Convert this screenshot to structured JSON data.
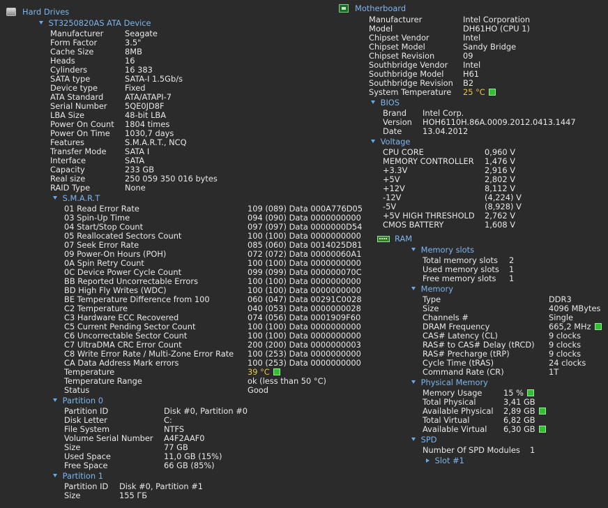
{
  "hard_drives": {
    "title": "Hard Drives",
    "device": "ST3250820AS ATA Device",
    "props": [
      {
        "k": "Manufacturer",
        "v": "Seagate"
      },
      {
        "k": "Form Factor",
        "v": "3.5\""
      },
      {
        "k": "Cache Size",
        "v": "8MB"
      },
      {
        "k": "Heads",
        "v": "16"
      },
      {
        "k": "Cylinders",
        "v": "16 383"
      },
      {
        "k": "SATA type",
        "v": "SATA-I 1.5Gb/s"
      },
      {
        "k": "Device type",
        "v": "Fixed"
      },
      {
        "k": "ATA Standard",
        "v": "ATA/ATAPI-7"
      },
      {
        "k": "Serial Number",
        "v": "5QE0JD8F"
      },
      {
        "k": "LBA Size",
        "v": "48-bit LBA"
      },
      {
        "k": "Power On Count",
        "v": "1804 times"
      },
      {
        "k": "Power On Time",
        "v": "1030,7 days"
      },
      {
        "k": "Features",
        "v": "S.M.A.R.T., NCQ"
      },
      {
        "k": "Transfer Mode",
        "v": "SATA I"
      },
      {
        "k": "Interface",
        "v": "SATA"
      },
      {
        "k": "Capacity",
        "v": "233 GB"
      },
      {
        "k": "Real size",
        "v": "250 059 350 016 bytes"
      },
      {
        "k": "RAID Type",
        "v": "None"
      }
    ],
    "smart": {
      "title": "S.M.A.R.T",
      "rows": [
        {
          "k": "01 Read Error Rate",
          "v": "109 (089) Data 000A776D05"
        },
        {
          "k": "03 Spin-Up Time",
          "v": "094 (090) Data 0000000000"
        },
        {
          "k": "04 Start/Stop Count",
          "v": "097 (097) Data 0000000D54"
        },
        {
          "k": "05 Reallocated Sectors Count",
          "v": "100 (100) Data 0000000000"
        },
        {
          "k": "07 Seek Error Rate",
          "v": "085 (060) Data 0014025D81"
        },
        {
          "k": "09 Power-On Hours (POH)",
          "v": "072 (072) Data 00000060A1"
        },
        {
          "k": "0A Spin Retry Count",
          "v": "100 (100) Data 0000000000"
        },
        {
          "k": "0C Device Power Cycle Count",
          "v": "099 (099) Data 000000070C"
        },
        {
          "k": "BB Reported Uncorrectable Errors",
          "v": "100 (100) Data 0000000000"
        },
        {
          "k": "BD High Fly Writes (WDC)",
          "v": "100 (100) Data 0000000000"
        },
        {
          "k": "BE Temperature Difference from 100",
          "v": "060 (047) Data 00291C0028"
        },
        {
          "k": "C2 Temperature",
          "v": "040 (053) Data 0000000028"
        },
        {
          "k": "C3 Hardware ECC Recovered",
          "v": "074 (056) Data 0001909F60"
        },
        {
          "k": "C5 Current Pending Sector Count",
          "v": "100 (100) Data 0000000000"
        },
        {
          "k": "C6 Uncorrectable Sector Count",
          "v": "100 (100) Data 0000000000"
        },
        {
          "k": "C7 UltraDMA CRC Error Count",
          "v": "200 (200) Data 0000000003"
        },
        {
          "k": "C8 Write Error Rate / Multi-Zone Error Rate",
          "v": "100 (253) Data 0000000000"
        },
        {
          "k": "CA Data Address Mark errors",
          "v": "100 (253) Data 0000000000"
        }
      ],
      "temperature_label": "Temperature",
      "temperature_value": "39 °C",
      "temp_range_label": "Temperature Range",
      "temp_range_value": "ok (less than 50 °C)",
      "status_label": "Status",
      "status_value": "Good"
    },
    "partition0": {
      "title": "Partition 0",
      "props": [
        {
          "k": "Partition ID",
          "v": "Disk #0, Partition #0"
        },
        {
          "k": "Disk Letter",
          "v": "C:"
        },
        {
          "k": "File System",
          "v": "NTFS"
        },
        {
          "k": "Volume Serial Number",
          "v": "A4F2AAF0"
        },
        {
          "k": "Size",
          "v": "77 GB"
        },
        {
          "k": "Used Space",
          "v": "11,0 GB (15%)"
        },
        {
          "k": "Free Space",
          "v": "66 GB (85%)"
        }
      ]
    },
    "partition1": {
      "title": "Partition 1",
      "props": [
        {
          "k": "Partition ID",
          "v": "Disk #0, Partition #1"
        },
        {
          "k": "Size",
          "v": "155 ГБ"
        }
      ]
    }
  },
  "motherboard": {
    "title": "Motherboard",
    "props": [
      {
        "k": "Manufacturer",
        "v": "Intel Corporation"
      },
      {
        "k": "Model",
        "v": "DH61HO (CPU 1)"
      },
      {
        "k": "Chipset Vendor",
        "v": "Intel"
      },
      {
        "k": "Chipset Model",
        "v": "Sandy Bridge"
      },
      {
        "k": "Chipset Revision",
        "v": "09"
      },
      {
        "k": "Southbridge Vendor",
        "v": "Intel"
      },
      {
        "k": "Southbridge Model",
        "v": "H61"
      },
      {
        "k": "Southbridge Revision",
        "v": "B2"
      }
    ],
    "sys_temp_label": "System Temperature",
    "sys_temp_value": "25 °C",
    "bios": {
      "title": "BIOS",
      "props": [
        {
          "k": "Brand",
          "v": "Intel Corp."
        },
        {
          "k": "Version",
          "v": "HOH6110H.86A.0009.2012.0413.1447"
        },
        {
          "k": "Date",
          "v": "13.04.2012"
        }
      ]
    },
    "voltage": {
      "title": "Voltage",
      "props": [
        {
          "k": "CPU CORE",
          "v": "0,960 V"
        },
        {
          "k": "MEMORY CONTROLLER",
          "v": "1,476 V"
        },
        {
          "k": "+3.3V",
          "v": "2,916 V"
        },
        {
          "k": "+5V",
          "v": "2,802 V"
        },
        {
          "k": "+12V",
          "v": "8,112 V"
        },
        {
          "k": "-12V",
          "v": "(4,224) V"
        },
        {
          "k": "-5V",
          "v": "(8,928) V"
        },
        {
          "k": "+5V HIGH THRESHOLD",
          "v": "2,762 V"
        },
        {
          "k": "CMOS BATTERY",
          "v": "1,608 V"
        }
      ]
    }
  },
  "ram": {
    "title": "RAM",
    "slots": {
      "title": "Memory slots",
      "props": [
        {
          "k": "Total memory slots",
          "v": "2"
        },
        {
          "k": "Used memory slots",
          "v": "1"
        },
        {
          "k": "Free memory slots",
          "v": "1"
        }
      ]
    },
    "memory": {
      "title": "Memory",
      "props": [
        {
          "k": "Type",
          "v": "DDR3"
        },
        {
          "k": "Size",
          "v": "4096 MBytes"
        },
        {
          "k": "Channels #",
          "v": "Single"
        },
        {
          "k": "DRAM Frequency",
          "v": "665,2 MHz"
        },
        {
          "k": "CAS# Latency (CL)",
          "v": "9 clocks"
        },
        {
          "k": "RAS# to CAS# Delay (tRCD)",
          "v": "9 clocks"
        },
        {
          "k": "RAS# Precharge (tRP)",
          "v": "9 clocks"
        },
        {
          "k": "Cycle Time (tRAS)",
          "v": "24 clocks"
        },
        {
          "k": "Command Rate (CR)",
          "v": "1T"
        }
      ]
    },
    "physical": {
      "title": "Physical Memory",
      "props": [
        {
          "k": "Memory Usage",
          "v": "15 %"
        },
        {
          "k": "Total Physical",
          "v": "3,41 GB"
        },
        {
          "k": "Available Physical",
          "v": "2,89 GB"
        },
        {
          "k": "Total Virtual",
          "v": "6,82 GB"
        },
        {
          "k": "Available Virtual",
          "v": "6,30 GB"
        }
      ]
    },
    "spd": {
      "title": "SPD",
      "modules_label": "Number Of SPD Modules",
      "modules_value": "1",
      "slot_label": "Slot #1"
    }
  },
  "colors": {
    "header": "#7cb6ee",
    "warning": "#e6c84a",
    "indicator": "#30c030",
    "background": "#2b2b2b"
  }
}
